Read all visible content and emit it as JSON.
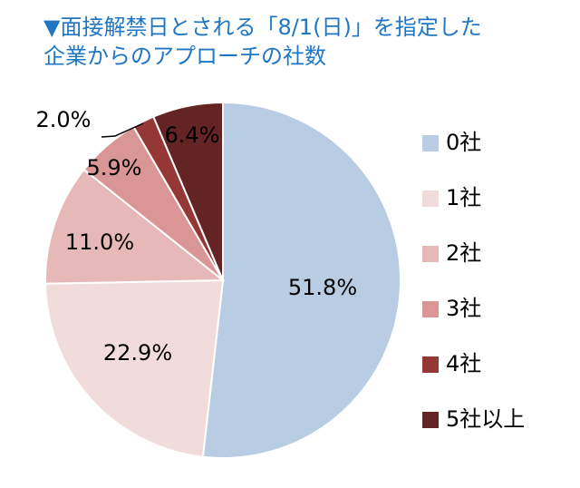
{
  "chart_data": {
    "type": "pie",
    "title_line1": "▼面接解禁日とされる「8/1(日)」を指定した",
    "title_line2": "企業からのアプローチの社数",
    "title_color": "#1f77c4",
    "categories": [
      "0社",
      "1社",
      "2社",
      "3社",
      "4社",
      "5社以上"
    ],
    "values": [
      51.8,
      22.9,
      11.0,
      5.9,
      2.0,
      6.4
    ],
    "value_labels": [
      "51.8%",
      "22.9%",
      "11.0%",
      "5.9%",
      "2.0%",
      "6.4%"
    ],
    "colors": [
      "#b8cce4",
      "#f2dcdb",
      "#e6b9b8",
      "#d99694",
      "#953735",
      "#632423"
    ],
    "legend_placement": "right",
    "start": "12 o'clock",
    "direction": "clockwise"
  }
}
